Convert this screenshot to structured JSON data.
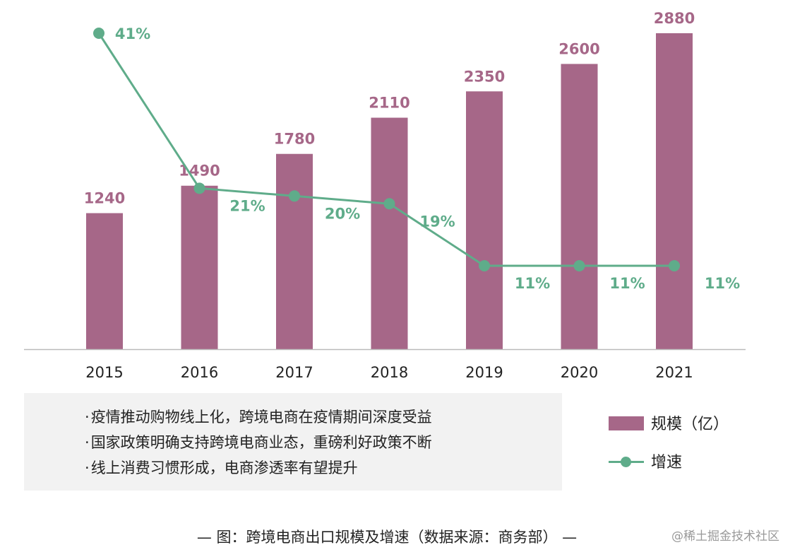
{
  "chart_data": {
    "type": "bar",
    "categories": [
      "2015",
      "2016",
      "2017",
      "2018",
      "2019",
      "2020",
      "2021"
    ],
    "series": [
      {
        "name": "规模（亿）",
        "type": "bar",
        "values": [
          1240,
          1490,
          1780,
          2110,
          2350,
          2600,
          2880
        ],
        "labels": [
          "1240",
          "1490",
          "1780",
          "2110",
          "2350",
          "2600",
          "2880"
        ]
      },
      {
        "name": "增速",
        "type": "line",
        "values": [
          41,
          21,
          20,
          19,
          11,
          11,
          11
        ],
        "labels": [
          "41%",
          "21%",
          "20%",
          "19%",
          "11%",
          "11%",
          "11%"
        ]
      }
    ],
    "ylim": [
      0,
      2880
    ],
    "ylim_rate": [
      0,
      41
    ],
    "grid": false,
    "title": "图：跨境电商出口规模及增速（数据来源：商务部）"
  },
  "colors": {
    "bar": "#a66788",
    "line": "#5fac8a",
    "axis": "#bbbbbb"
  },
  "notes": [
    "疫情推动购物线上化，跨境电商在疫情期间深度受益",
    "国家政策明确支持跨境电商业态，重磅利好政策不断",
    "线上消费习惯形成，电商渗透率有望提升"
  ],
  "legend": {
    "bar_label": "规模（亿）",
    "line_label": "增速"
  },
  "caption": "— 图：跨境电商出口规模及增速（数据来源：商务部） —",
  "watermark": "@稀土掘金技术社区"
}
